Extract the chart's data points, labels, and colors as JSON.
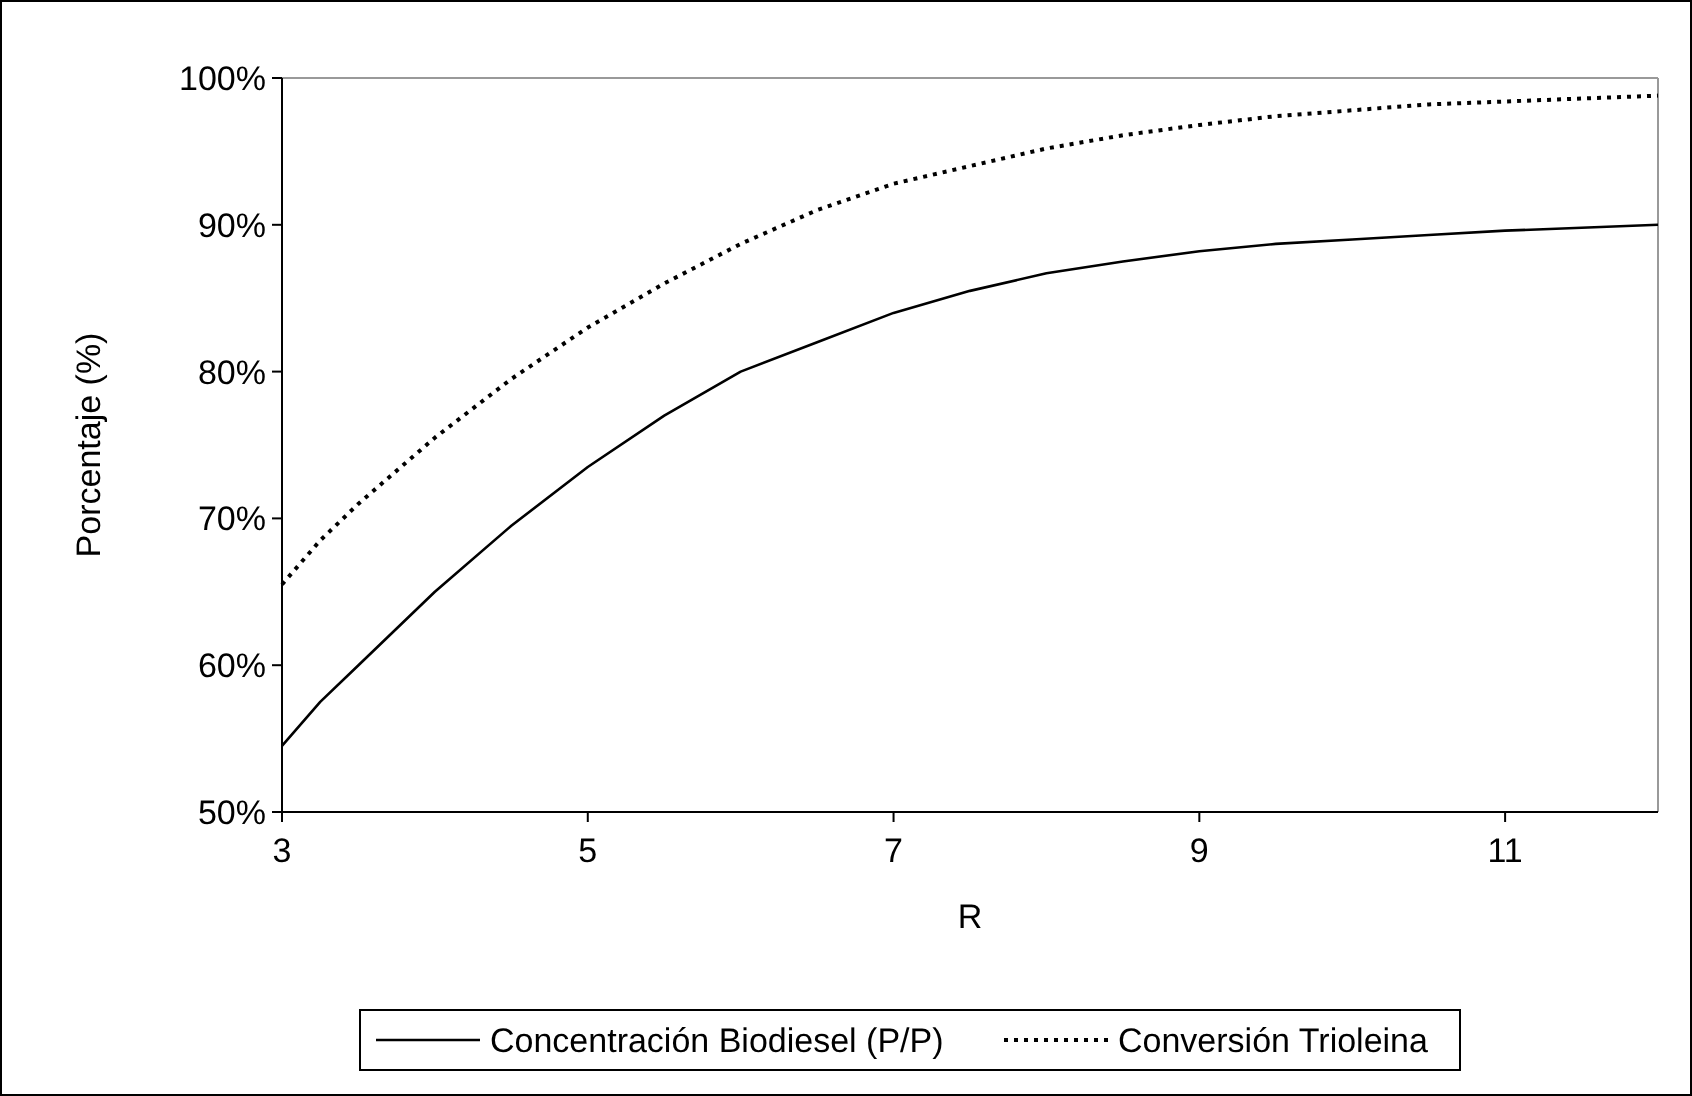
{
  "chart_data": {
    "type": "line",
    "xlabel": "R",
    "ylabel": "Porcentaje (%)",
    "xlim": [
      3,
      12
    ],
    "xticks": [
      3,
      5,
      7,
      9,
      11
    ],
    "ylim": [
      50,
      100
    ],
    "yticks": [
      {
        "value": 50,
        "label": "50%"
      },
      {
        "value": 60,
        "label": "60%"
      },
      {
        "value": 70,
        "label": "70%"
      },
      {
        "value": 80,
        "label": "80%"
      },
      {
        "value": 90,
        "label": "90%"
      },
      {
        "value": 100,
        "label": "100%"
      }
    ],
    "x": [
      3,
      3.25,
      3.5,
      4,
      4.5,
      5,
      5.5,
      6,
      6.5,
      7,
      7.5,
      8,
      8.5,
      9,
      9.5,
      10,
      10.5,
      11,
      11.5,
      12
    ],
    "series": [
      {
        "name": "Concentración Biodiesel (P/P)",
        "color": "#000000",
        "line_style": "solid",
        "values": [
          54.5,
          57.5,
          60,
          65,
          69.5,
          73.5,
          77,
          80,
          82,
          84,
          85.5,
          86.7,
          87.5,
          88.2,
          88.7,
          89,
          89.3,
          89.6,
          89.8,
          90
        ]
      },
      {
        "name": "Conversión Trioleina",
        "color": "#000000",
        "line_style": "dotted",
        "values": [
          65.5,
          68.5,
          71,
          75.5,
          79.5,
          83,
          86,
          88.7,
          91,
          92.8,
          94,
          95.2,
          96.1,
          96.8,
          97.4,
          97.8,
          98.2,
          98.4,
          98.6,
          98.8
        ]
      }
    ],
    "grid": false,
    "legend": "bottom",
    "marker": "none"
  }
}
